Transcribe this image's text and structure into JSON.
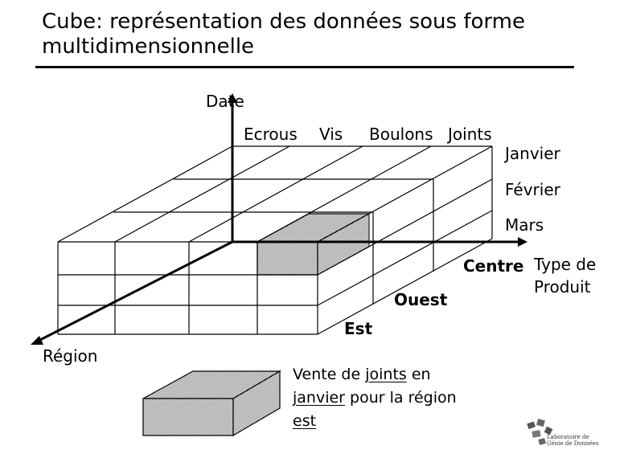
{
  "title": {
    "line1": "Cube: représentation des données sous forme",
    "line2": "multidimensionnelle"
  },
  "axes": {
    "date_label": "Date",
    "region_label": "Région",
    "product_label_line1": "Type de",
    "product_label_line2": "Produit"
  },
  "products": [
    "Ecrous",
    "Vis",
    "Boulons",
    "Joints"
  ],
  "months": [
    "Janvier",
    "Février",
    "Mars"
  ],
  "regions": [
    "Centre",
    "Ouest",
    "Est"
  ],
  "legend": {
    "part1": "Vente de ",
    "joints": "joints",
    "part2": " en",
    "janvier": "janvier",
    "part3": " pour la région",
    "est": "est"
  },
  "logo": {
    "line1": "Laboratoire de",
    "line2": "Génie de Données"
  }
}
